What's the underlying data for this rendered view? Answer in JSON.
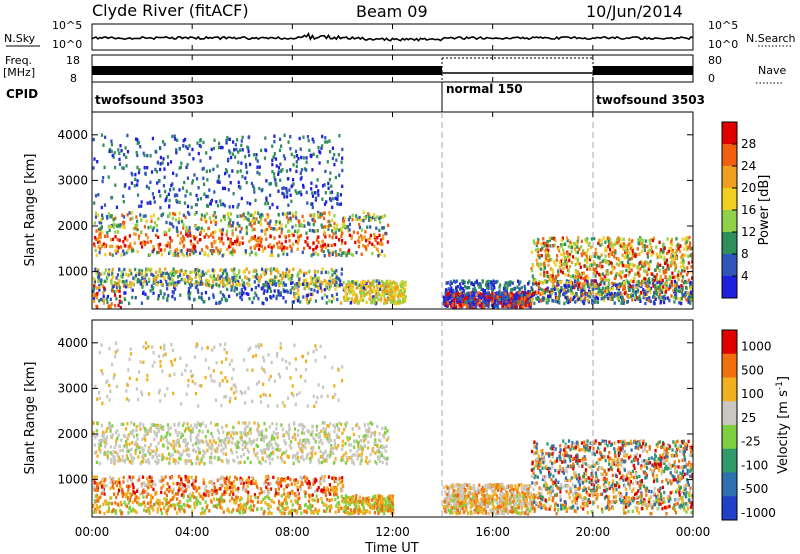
{
  "header": {
    "station": "Clyde River (fitACF)",
    "beam": "Beam 09",
    "date": "10/Jun/2014"
  },
  "nsky_panel": {
    "left_label": "N.Sky",
    "left_ticks": [
      "10^5",
      "10^0"
    ],
    "right_label": "N.Search",
    "right_ticks": [
      "10^5",
      "10^0"
    ]
  },
  "freq_panel": {
    "left_label_1": "Freq.",
    "left_label_2": "[MHz]",
    "left_ticks": [
      "18",
      "8"
    ],
    "right_label": "Nave",
    "right_ticks": [
      "80",
      "0"
    ]
  },
  "cpid_panel": {
    "label": "CPID",
    "segments": [
      "twofsound 3503",
      "normal 150",
      "twofsound 3503"
    ]
  },
  "time_axis": {
    "label": "Time UT",
    "ticks": [
      "00:00",
      "04:00",
      "08:00",
      "12:00",
      "16:00",
      "20:00",
      "00:00"
    ]
  },
  "range_axis": {
    "label": "Slant Range [km]",
    "ticks": [
      "1000",
      "2000",
      "3000",
      "4000"
    ]
  },
  "power_colorbar": {
    "label": "Power [dB]",
    "ticks": [
      "4",
      "8",
      "12",
      "16",
      "20",
      "24",
      "28"
    ],
    "colors": [
      "#1f1fe0",
      "#2f56b8",
      "#2f8f5a",
      "#8fd14a",
      "#f0d020",
      "#f0a020",
      "#f06010",
      "#e00000"
    ]
  },
  "velocity_colorbar": {
    "label": "Velocity [m s",
    "label_sup": "-1",
    "label_end": "]",
    "ticks": [
      "1000",
      "500",
      "100",
      "25",
      "-25",
      "-100",
      "-500",
      "-1000"
    ],
    "colors": [
      "#2040c8",
      "#2f70b0",
      "#2f9a6a",
      "#7fd040",
      "#c8c8c0",
      "#f0b020",
      "#f07010",
      "#e00000"
    ]
  },
  "chart_data": {
    "type": "heatmap",
    "x_range_hours": [
      0,
      24
    ],
    "y_range_km": [
      180,
      4500
    ],
    "mode_changes_hours": [
      14.0,
      20.0
    ],
    "power_echo_bands": [
      {
        "t0": 0,
        "t1": 11.8,
        "r0": 1350,
        "r1": 2300,
        "level": "high"
      },
      {
        "t0": 0,
        "t1": 9.8,
        "r0": 700,
        "r1": 1050,
        "level": "medium"
      },
      {
        "t0": 0,
        "t1": 1.2,
        "r0": 200,
        "r1": 700,
        "level": "high"
      },
      {
        "t0": 14.0,
        "t1": 17.5,
        "r0": 250,
        "r1": 500,
        "level": "high"
      },
      {
        "t0": 17.5,
        "t1": 24,
        "r0": 400,
        "r1": 1800,
        "level": "medium"
      }
    ]
  }
}
